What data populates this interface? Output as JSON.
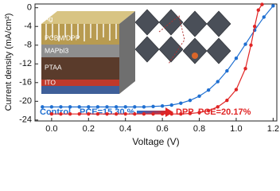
{
  "chart_data": {
    "type": "line",
    "xlabel": "Voltage (V)",
    "ylabel": "Current density (mA/cm²)",
    "xlim": [
      -0.09,
      1.22
    ],
    "ylim": [
      -24.2,
      0.8
    ],
    "xticks": [
      {
        "value": 0,
        "label": "0.0"
      },
      0.2,
      0.4,
      0.6,
      0.8,
      {
        "value": 1,
        "label": "1.0"
      },
      1.2
    ],
    "yticks": [
      0,
      -4,
      -8,
      -12,
      -16,
      -20,
      -24
    ],
    "series": [
      {
        "name": "Control",
        "color": "#1f6fd1",
        "x": [
          -0.05,
          0,
          0.05,
          0.1,
          0.15,
          0.2,
          0.25,
          0.3,
          0.35,
          0.4,
          0.45,
          0.5,
          0.55,
          0.6,
          0.65,
          0.7,
          0.75,
          0.8,
          0.85,
          0.9,
          0.95,
          1.0,
          1.05,
          1.1,
          1.15,
          1.2
        ],
        "values": [
          -21.2,
          -21.2,
          -21.2,
          -21.2,
          -21.2,
          -21.2,
          -21.2,
          -21.2,
          -21.2,
          -21.2,
          -21.2,
          -21.2,
          -21.1,
          -21.0,
          -20.8,
          -20.4,
          -19.8,
          -18.9,
          -17.6,
          -15.8,
          -13.5,
          -10.8,
          -7.8,
          -4.8,
          -2.0,
          0.4
        ]
      },
      {
        "name": "DPP",
        "color": "#e02424",
        "x": [
          0,
          0.05,
          0.1,
          0.15,
          0.2,
          0.25,
          0.3,
          0.35,
          0.4,
          0.45,
          0.5,
          0.55,
          0.6,
          0.65,
          0.7,
          0.75,
          0.8,
          0.85,
          0.9,
          0.95,
          1.0,
          1.05,
          1.08,
          1.1,
          1.12,
          1.14
        ],
        "values": [
          -22.7,
          -22.7,
          -22.7,
          -22.7,
          -22.7,
          -22.7,
          -22.7,
          -22.7,
          -22.7,
          -22.7,
          -22.7,
          -22.7,
          -22.7,
          -22.7,
          -22.7,
          -22.6,
          -22.4,
          -22.0,
          -21.2,
          -19.8,
          -17.5,
          -13.0,
          -8.0,
          -4.0,
          -0.5,
          0.7
        ]
      }
    ],
    "annotations": [
      "PCE=15.30 %",
      "PCE=20.17%"
    ],
    "inset_layers": [
      "Ag",
      "PCBM/DPP",
      "MAPbI3",
      "PTAA",
      "ITO"
    ]
  }
}
